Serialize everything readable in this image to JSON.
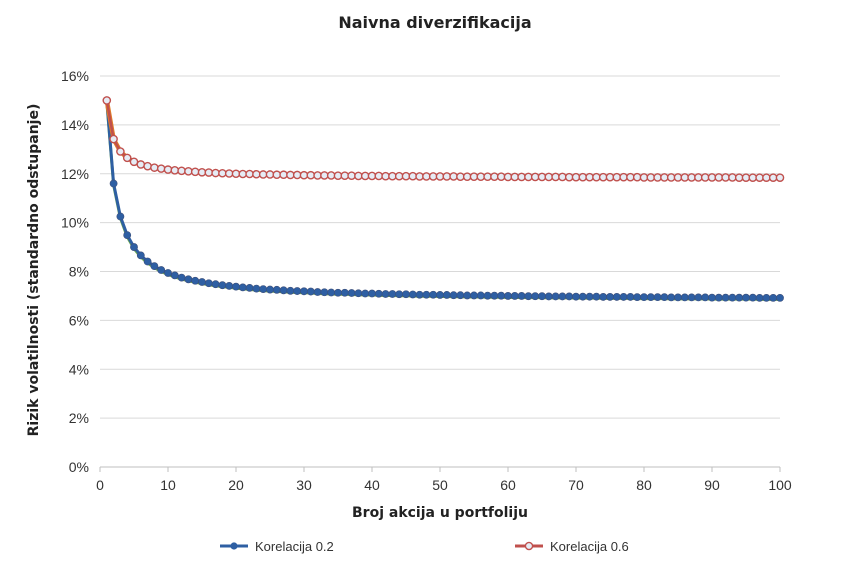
{
  "chart_data": {
    "type": "line",
    "title": "Naivna diverzifikacija",
    "xlabel": "Broj akcija u portfoliju",
    "ylabel": "Rizik volatilnosti (standardno odstupanje)",
    "xlim": [
      0,
      100
    ],
    "ylim": [
      0,
      16
    ],
    "x_ticks": [
      "0",
      "10",
      "20",
      "30",
      "40",
      "50",
      "60",
      "70",
      "80",
      "90",
      "100"
    ],
    "y_ticks": [
      "0%",
      "2%",
      "4%",
      "6%",
      "8%",
      "10%",
      "12%",
      "14%",
      "16%"
    ],
    "grid": "horizontal",
    "legend_position": "bottom",
    "x": [
      1,
      2,
      3,
      4,
      5,
      6,
      7,
      8,
      9,
      10,
      11,
      12,
      13,
      14,
      15,
      16,
      17,
      18,
      19,
      20,
      21,
      22,
      23,
      24,
      25,
      26,
      27,
      28,
      29,
      30,
      31,
      32,
      33,
      34,
      35,
      36,
      37,
      38,
      39,
      40,
      41,
      42,
      43,
      44,
      45,
      46,
      47,
      48,
      49,
      50,
      51,
      52,
      53,
      54,
      55,
      56,
      57,
      58,
      59,
      60,
      61,
      62,
      63,
      64,
      65,
      66,
      67,
      68,
      69,
      70,
      71,
      72,
      73,
      74,
      75,
      76,
      77,
      78,
      79,
      80,
      81,
      82,
      83,
      84,
      85,
      86,
      87,
      88,
      89,
      90,
      91,
      92,
      93,
      94,
      95,
      96,
      97,
      98,
      99,
      100
    ],
    "series": [
      {
        "name": "Korelacija 0.2",
        "color": "#2e5fa3",
        "marker": "dot",
        "values": [
          15.0,
          11.6,
          10.25,
          9.49,
          9.0,
          8.66,
          8.41,
          8.22,
          8.06,
          7.94,
          7.84,
          7.75,
          7.68,
          7.62,
          7.57,
          7.52,
          7.48,
          7.44,
          7.41,
          7.38,
          7.35,
          7.33,
          7.3,
          7.28,
          7.26,
          7.25,
          7.23,
          7.21,
          7.2,
          7.19,
          7.18,
          7.16,
          7.15,
          7.14,
          7.13,
          7.13,
          7.12,
          7.11,
          7.1,
          7.1,
          7.09,
          7.08,
          7.08,
          7.07,
          7.07,
          7.06,
          7.05,
          7.05,
          7.05,
          7.04,
          7.04,
          7.03,
          7.03,
          7.02,
          7.02,
          7.02,
          7.01,
          7.01,
          7.01,
          7.0,
          7.0,
          7.0,
          6.99,
          6.99,
          6.99,
          6.98,
          6.98,
          6.98,
          6.98,
          6.97,
          6.97,
          6.97,
          6.97,
          6.96,
          6.96,
          6.96,
          6.96,
          6.96,
          6.95,
          6.95,
          6.95,
          6.95,
          6.95,
          6.94,
          6.94,
          6.94,
          6.94,
          6.94,
          6.94,
          6.93,
          6.93,
          6.93,
          6.93,
          6.93,
          6.93,
          6.93,
          6.92,
          6.92,
          6.92,
          6.92
        ]
      },
      {
        "name": "Korelacija 0.6",
        "color": "#c0504d",
        "marker": "ring",
        "values": [
          15.0,
          13.42,
          12.91,
          12.65,
          12.49,
          12.38,
          12.31,
          12.25,
          12.21,
          12.17,
          12.14,
          12.12,
          12.1,
          12.08,
          12.06,
          12.05,
          12.03,
          12.02,
          12.01,
          12.0,
          11.99,
          11.99,
          11.98,
          11.97,
          11.97,
          11.96,
          11.96,
          11.95,
          11.95,
          11.94,
          11.94,
          11.93,
          11.93,
          11.93,
          11.92,
          11.92,
          11.92,
          11.91,
          11.91,
          11.91,
          11.91,
          11.9,
          11.9,
          11.9,
          11.9,
          11.9,
          11.89,
          11.89,
          11.89,
          11.89,
          11.89,
          11.89,
          11.88,
          11.88,
          11.88,
          11.88,
          11.88,
          11.88,
          11.88,
          11.87,
          11.87,
          11.87,
          11.87,
          11.87,
          11.87,
          11.87,
          11.87,
          11.87,
          11.86,
          11.86,
          11.86,
          11.86,
          11.86,
          11.86,
          11.86,
          11.86,
          11.86,
          11.86,
          11.86,
          11.85,
          11.85,
          11.85,
          11.85,
          11.85,
          11.85,
          11.85,
          11.85,
          11.85,
          11.85,
          11.85,
          11.85,
          11.85,
          11.85,
          11.84,
          11.84,
          11.84,
          11.84,
          11.84,
          11.84,
          11.84
        ]
      }
    ]
  }
}
